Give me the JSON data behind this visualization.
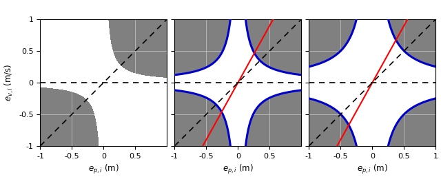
{
  "xlim": [
    -1,
    1
  ],
  "ylim": [
    -1,
    1
  ],
  "xlabel": "$e_{p,i}$ (m)",
  "ylabel": "$e_{v,i}$ (m/s)",
  "gray_color": "#808080",
  "blue_color": "#0000cc",
  "red_color": "#ff0000",
  "figsize": [
    6.4,
    2.57
  ],
  "dpi": 100,
  "plot1_alpha": 3.0,
  "plot2_k": 4.0,
  "plot2_c": 0.5,
  "plot3_k": 12.0,
  "plot3_c": 0.5,
  "red_slope": 1.8
}
